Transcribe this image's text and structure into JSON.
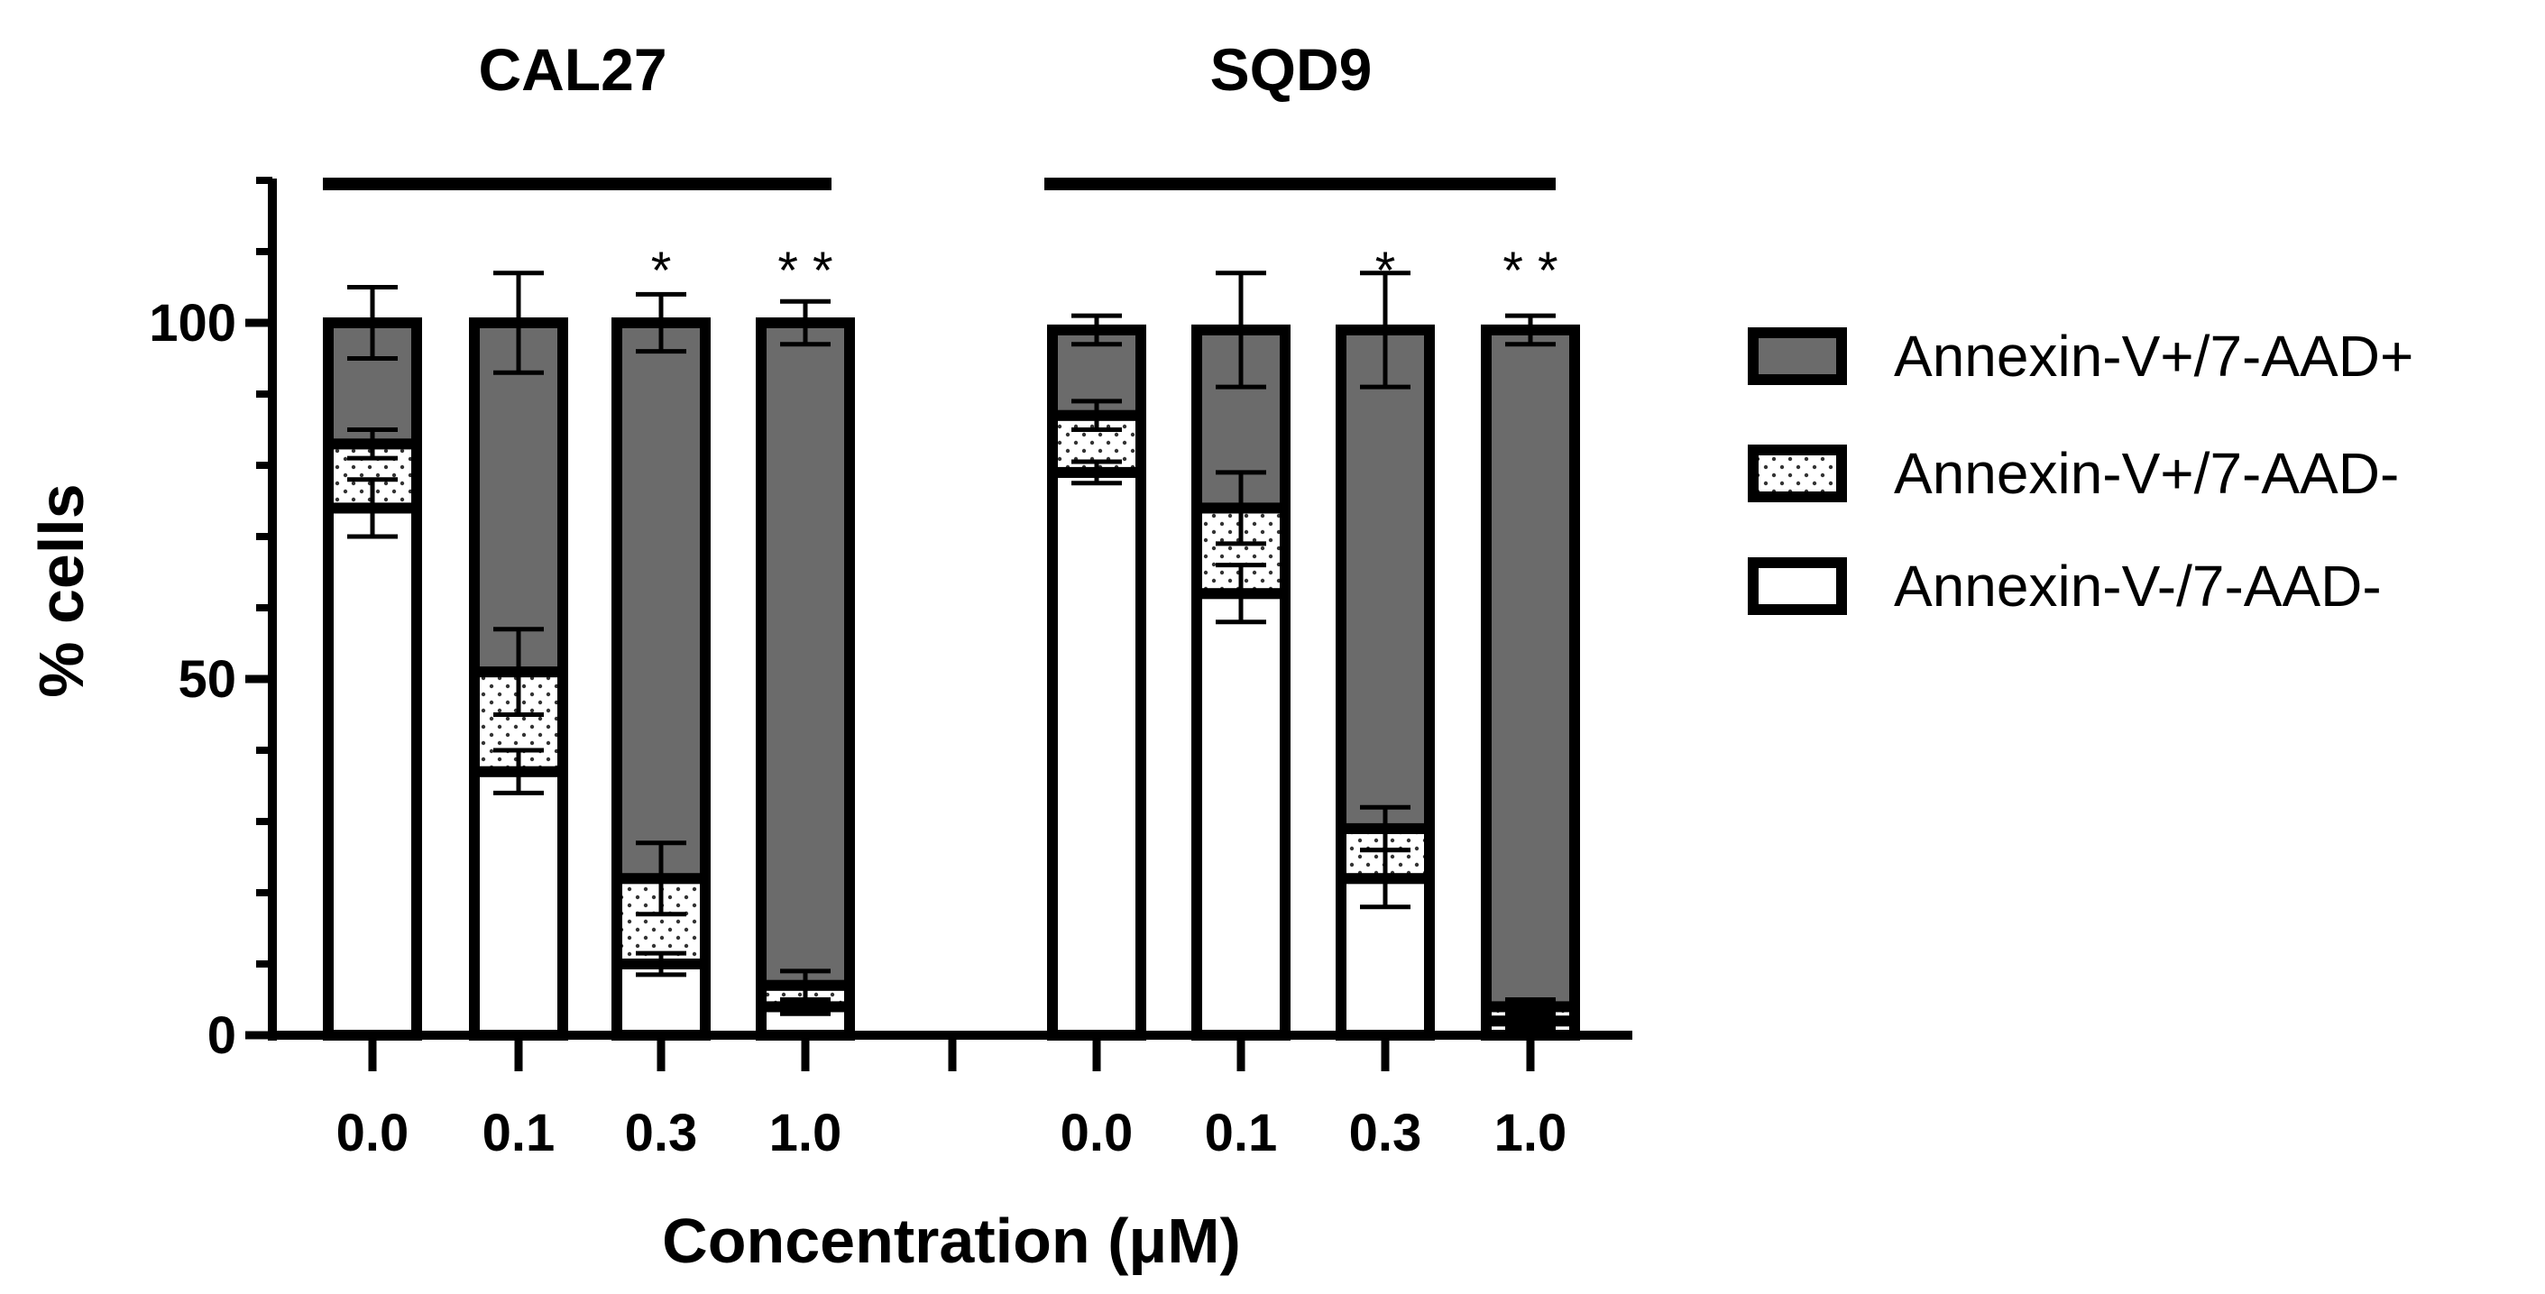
{
  "chart_data": {
    "type": "bar",
    "stacked": true,
    "title": "",
    "xlabel": "Concentration (μM)",
    "ylabel": "% cells",
    "ylim": [
      0,
      120
    ],
    "yticks": [
      0,
      50,
      100
    ],
    "ytick_labels": [
      "0",
      "50",
      "100"
    ],
    "minor_ytick_step": 10,
    "legend_position": "right",
    "colors": {
      "Annexin-V+/7-AAD+": "#6b6b6b",
      "Annexin-V+/7-AAD-": "#ffffff",
      "Annexin-V-/7-AAD-": "#ffffff",
      "outline": "#000000",
      "dots": "#333333"
    },
    "groups": [
      {
        "name": "CAL27",
        "categories": [
          "0.0",
          "0.1",
          "0.3",
          "1.0"
        ],
        "series": [
          {
            "name": "Annexin-V-/7-AAD-",
            "values": [
              74,
              37,
              10,
              4
            ],
            "errors": [
              4,
              3,
              1.5,
              1
            ]
          },
          {
            "name": "Annexin-V+/7-AAD-",
            "values": [
              9,
              14,
              12,
              3
            ],
            "errors": [
              2,
              6,
              5,
              2
            ]
          },
          {
            "name": "Annexin-V+/7-AAD+",
            "values": [
              17,
              49,
              78,
              93
            ],
            "errors": [
              5,
              7,
              4,
              3
            ]
          }
        ],
        "significance": [
          "",
          "",
          "*",
          "**"
        ]
      },
      {
        "name": "SQD9",
        "categories": [
          "0.0",
          "0.1",
          "0.3",
          "1.0"
        ],
        "series": [
          {
            "name": "Annexin-V-/7-AAD-",
            "values": [
              79,
              62,
              22,
              2
            ],
            "errors": [
              1.5,
              4,
              4,
              1
            ]
          },
          {
            "name": "Annexin-V+/7-AAD-",
            "values": [
              8,
              12,
              7,
              2
            ],
            "errors": [
              2,
              5,
              3,
              1
            ]
          },
          {
            "name": "Annexin-V+/7-AAD+",
            "values": [
              12,
              25,
              70,
              95
            ],
            "errors": [
              2,
              8,
              8,
              2
            ]
          }
        ],
        "significance": [
          "",
          "",
          "*",
          "**"
        ]
      }
    ],
    "legend": [
      "Annexin-V+/7-AAD+",
      "Annexin-V+/7-AAD-",
      "Annexin-V-/7-AAD-"
    ]
  }
}
